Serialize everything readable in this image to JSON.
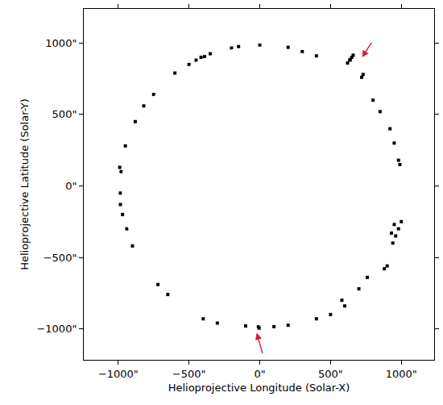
{
  "chart_data": {
    "type": "scatter",
    "x_label": "Helioprojective Longitude (Solar-X)",
    "y_label": "Helioprojective Latitude (Solar-Y)",
    "xlim": [
      -1244,
      1232
    ],
    "ylim": [
      -1217,
      1239
    ],
    "xticks": [
      {
        "value": -1000,
        "label": "−1000\""
      },
      {
        "value": -500,
        "label": "−500\""
      },
      {
        "value": 0,
        "label": "0\""
      },
      {
        "value": 500,
        "label": "500\""
      },
      {
        "value": 1000,
        "label": "1000\""
      }
    ],
    "yticks": [
      {
        "value": -1000,
        "label": "−1000\""
      },
      {
        "value": -500,
        "label": "−500\""
      },
      {
        "value": 0,
        "label": "0\""
      },
      {
        "value": 500,
        "label": "500\""
      },
      {
        "value": 1000,
        "label": "1000\""
      }
    ],
    "grid": false,
    "disk_radius": 975,
    "color": "#000000",
    "marker": "square",
    "x": [
      620,
      635,
      640,
      650,
      660,
      720,
      730,
      -390,
      -350,
      -415,
      -200,
      -150,
      -500,
      -450,
      0,
      200,
      300,
      400,
      -600,
      -750,
      -820,
      -880,
      -950,
      920,
      950,
      800,
      850,
      990,
      980,
      -990,
      -980,
      -985,
      -985,
      -970,
      -940,
      -900,
      950,
      980,
      930,
      960,
      1000,
      940,
      900,
      880,
      760,
      700,
      600,
      580,
      500,
      400,
      200,
      100,
      -5,
      -10,
      -100,
      -300,
      -400,
      -650,
      -720
    ],
    "y": [
      860,
      880,
      885,
      900,
      915,
      760,
      780,
      905,
      925,
      900,
      965,
      975,
      850,
      880,
      985,
      970,
      940,
      910,
      790,
      640,
      560,
      450,
      280,
      400,
      300,
      600,
      520,
      150,
      180,
      130,
      100,
      -50,
      -130,
      -200,
      -300,
      -420,
      -270,
      -300,
      -330,
      -350,
      -250,
      -400,
      -560,
      -580,
      -640,
      -720,
      -840,
      -800,
      -900,
      -930,
      -975,
      -985,
      -995,
      -985,
      -980,
      -960,
      -930,
      -760,
      -690
    ],
    "arrows": [
      {
        "x": 723,
        "y": 900,
        "ax": 795,
        "ay": 1011,
        "color": "#d62035"
      },
      {
        "x": -22,
        "y": -1028,
        "ax": 22,
        "ay": -1180,
        "color": "#d62035"
      }
    ]
  }
}
